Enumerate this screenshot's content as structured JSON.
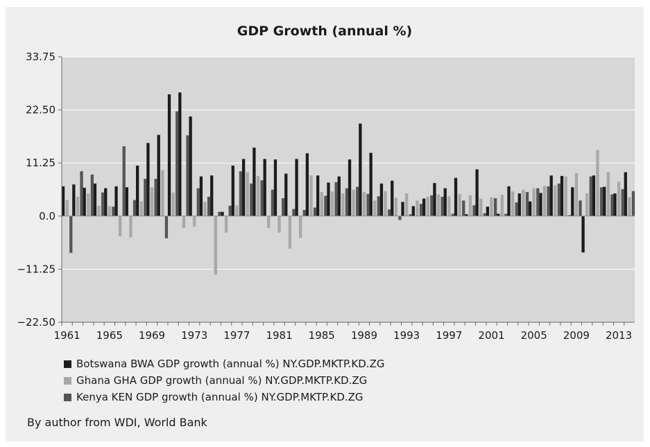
{
  "chart_data": {
    "type": "bar",
    "title": "GDP Growth (annual %)",
    "xlabel": "",
    "ylabel": "",
    "ylim": [
      -22.5,
      33.75
    ],
    "y_ticks": [
      "33.75",
      "22.50",
      "11.25",
      "0.0",
      "−11.25",
      "−22.50"
    ],
    "x_tick_labels": [
      "1961",
      "1965",
      "1969",
      "1973",
      "1977",
      "1981",
      "1985",
      "1989",
      "1993",
      "1997",
      "2001",
      "2005",
      "2009",
      "2013"
    ],
    "categories": [
      "1961",
      "1962",
      "1963",
      "1964",
      "1965",
      "1966",
      "1967",
      "1968",
      "1969",
      "1970",
      "1971",
      "1972",
      "1973",
      "1974",
      "1975",
      "1976",
      "1977",
      "1978",
      "1979",
      "1980",
      "1981",
      "1982",
      "1983",
      "1984",
      "1985",
      "1986",
      "1987",
      "1988",
      "1989",
      "1990",
      "1991",
      "1992",
      "1993",
      "1994",
      "1995",
      "1996",
      "1997",
      "1998",
      "1999",
      "2000",
      "2001",
      "2002",
      "2003",
      "2004",
      "2005",
      "2006",
      "2007",
      "2008",
      "2009",
      "2010",
      "2011",
      "2012",
      "2013",
      "2014"
    ],
    "grid": "horizontal",
    "legend_position": "bottom",
    "series": [
      {
        "name": "Botswana BWA GDP growth (annual %) NY.GDP.MKTP.KD.ZG",
        "color": "#1c1c1c",
        "values": [
          6.3,
          6.7,
          6.0,
          6.9,
          5.9,
          6.3,
          6.1,
          10.7,
          15.5,
          17.2,
          25.8,
          26.2,
          21.1,
          8.4,
          8.6,
          0.9,
          10.7,
          12.1,
          14.5,
          12.1,
          12.0,
          9.0,
          12.1,
          13.3,
          8.6,
          7.1,
          8.4,
          12.0,
          19.6,
          13.4,
          6.9,
          7.5,
          3.0,
          2.1,
          3.7,
          7.0,
          5.9,
          8.1,
          0.4,
          9.9,
          2.0,
          0.5,
          6.3,
          4.8,
          3.1,
          4.9,
          8.6,
          8.5,
          6.1,
          -7.7,
          8.6,
          6.2,
          4.8,
          9.3
        ]
      },
      {
        "name": "Ghana GHA GDP growth (annual %) NY.GDP.MKTP.KD.ZG",
        "color": "#a8a8a8",
        "values": [
          3.4,
          4.1,
          4.8,
          2.2,
          2.1,
          -4.3,
          -4.5,
          3.1,
          6.1,
          9.7,
          5.0,
          -2.5,
          -2.2,
          3.0,
          -12.4,
          -3.5,
          2.3,
          9.3,
          8.5,
          -2.5,
          -3.5,
          -6.9,
          -4.6,
          8.6,
          5.1,
          5.2,
          4.8,
          5.6,
          5.1,
          3.3,
          5.3,
          3.9,
          4.8,
          3.3,
          4.1,
          4.6,
          4.2,
          4.7,
          4.4,
          3.7,
          4.0,
          4.5,
          5.2,
          5.6,
          5.9,
          6.4,
          6.5,
          8.4,
          9.1,
          4.8,
          14.0,
          9.3,
          7.3,
          4.0
        ]
      },
      {
        "name": "Kenya KEN GDP growth (annual %) NY.GDP.MKTP.KD.ZG",
        "color": "#555555",
        "values": [
          -7.8,
          9.5,
          8.8,
          5.0,
          2.0,
          14.8,
          3.4,
          7.9,
          7.9,
          -4.7,
          22.2,
          17.1,
          5.9,
          4.1,
          0.9,
          2.2,
          9.5,
          6.9,
          7.6,
          5.6,
          3.8,
          1.5,
          1.3,
          1.8,
          4.3,
          7.2,
          5.9,
          6.2,
          4.7,
          4.2,
          1.4,
          -0.8,
          0.4,
          2.6,
          4.4,
          4.1,
          0.5,
          3.3,
          2.3,
          0.6,
          3.8,
          0.5,
          2.9,
          5.1,
          5.9,
          6.3,
          6.9,
          0.2,
          3.3,
          8.4,
          6.1,
          4.6,
          5.7,
          5.3
        ]
      }
    ]
  },
  "source": "By author from WDI, World Bank"
}
